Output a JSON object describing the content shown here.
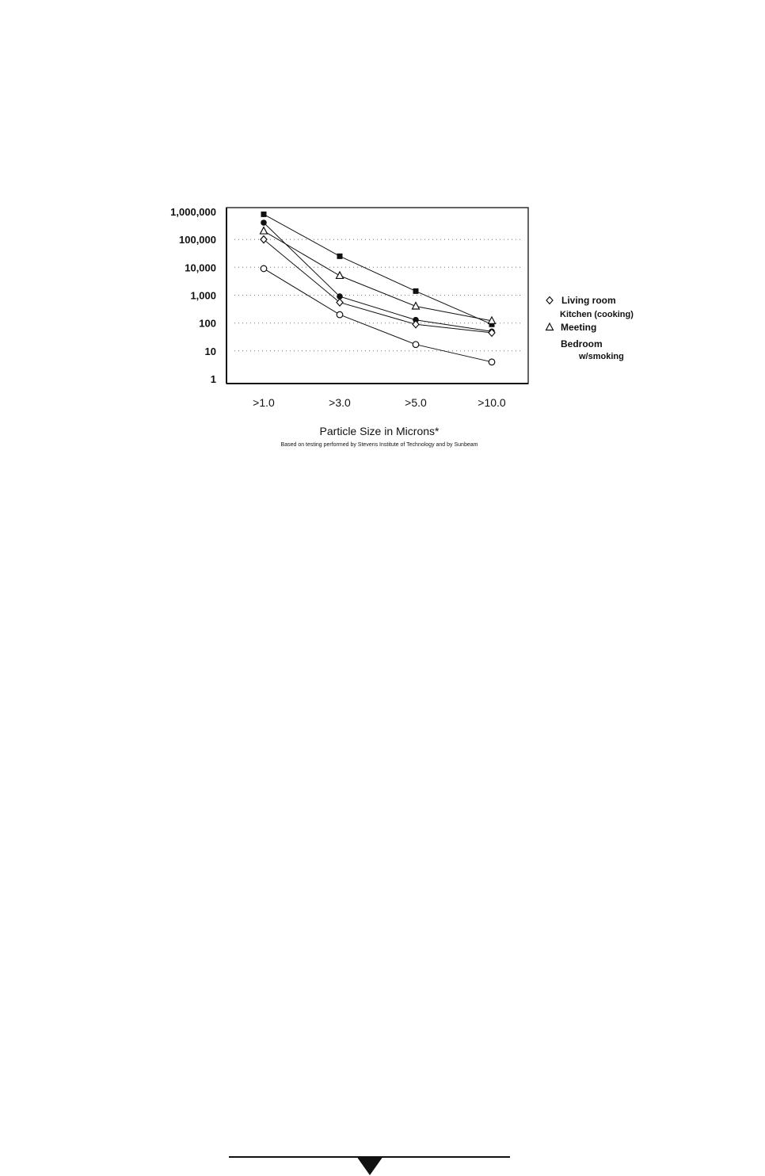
{
  "chart_data": {
    "type": "line",
    "y_scale": "log",
    "ylim": [
      1,
      1000000
    ],
    "y_ticks": [
      "1,000,000",
      "100,000",
      "10,000",
      "1,000",
      "100",
      "10",
      "1"
    ],
    "y_tick_values": [
      1000000,
      100000,
      10000,
      1000,
      100,
      10,
      1
    ],
    "categories": [
      ">1.0",
      ">3.0",
      ">5.0",
      ">10.0"
    ],
    "xlabel": "Particle Size in Microns*",
    "footnote": "Based on testing performed by Stevens Institute of Technology and by Sunbeam",
    "grid": true,
    "legend_position": "right",
    "legend": [
      {
        "marker": "diamond-open",
        "text": "Living room"
      },
      {
        "marker": "none",
        "text": "Kitchen (cooking)"
      },
      {
        "marker": "triangle-open",
        "text": "Meeting"
      },
      {
        "marker": "none",
        "text": "Bedroom"
      },
      {
        "marker": "none",
        "text": "w/smoking"
      }
    ],
    "series": [
      {
        "marker": "square-filled",
        "values": [
          800000,
          25000,
          1400,
          90
        ]
      },
      {
        "marker": "circle-filled",
        "values": [
          400000,
          900,
          130,
          50
        ]
      },
      {
        "marker": "triangle-open",
        "values": [
          200000,
          5000,
          400,
          120
        ]
      },
      {
        "marker": "diamond-open",
        "values": [
          100000,
          550,
          90,
          45
        ]
      },
      {
        "marker": "circle-open",
        "values": [
          9000,
          200,
          17,
          4
        ]
      }
    ]
  }
}
